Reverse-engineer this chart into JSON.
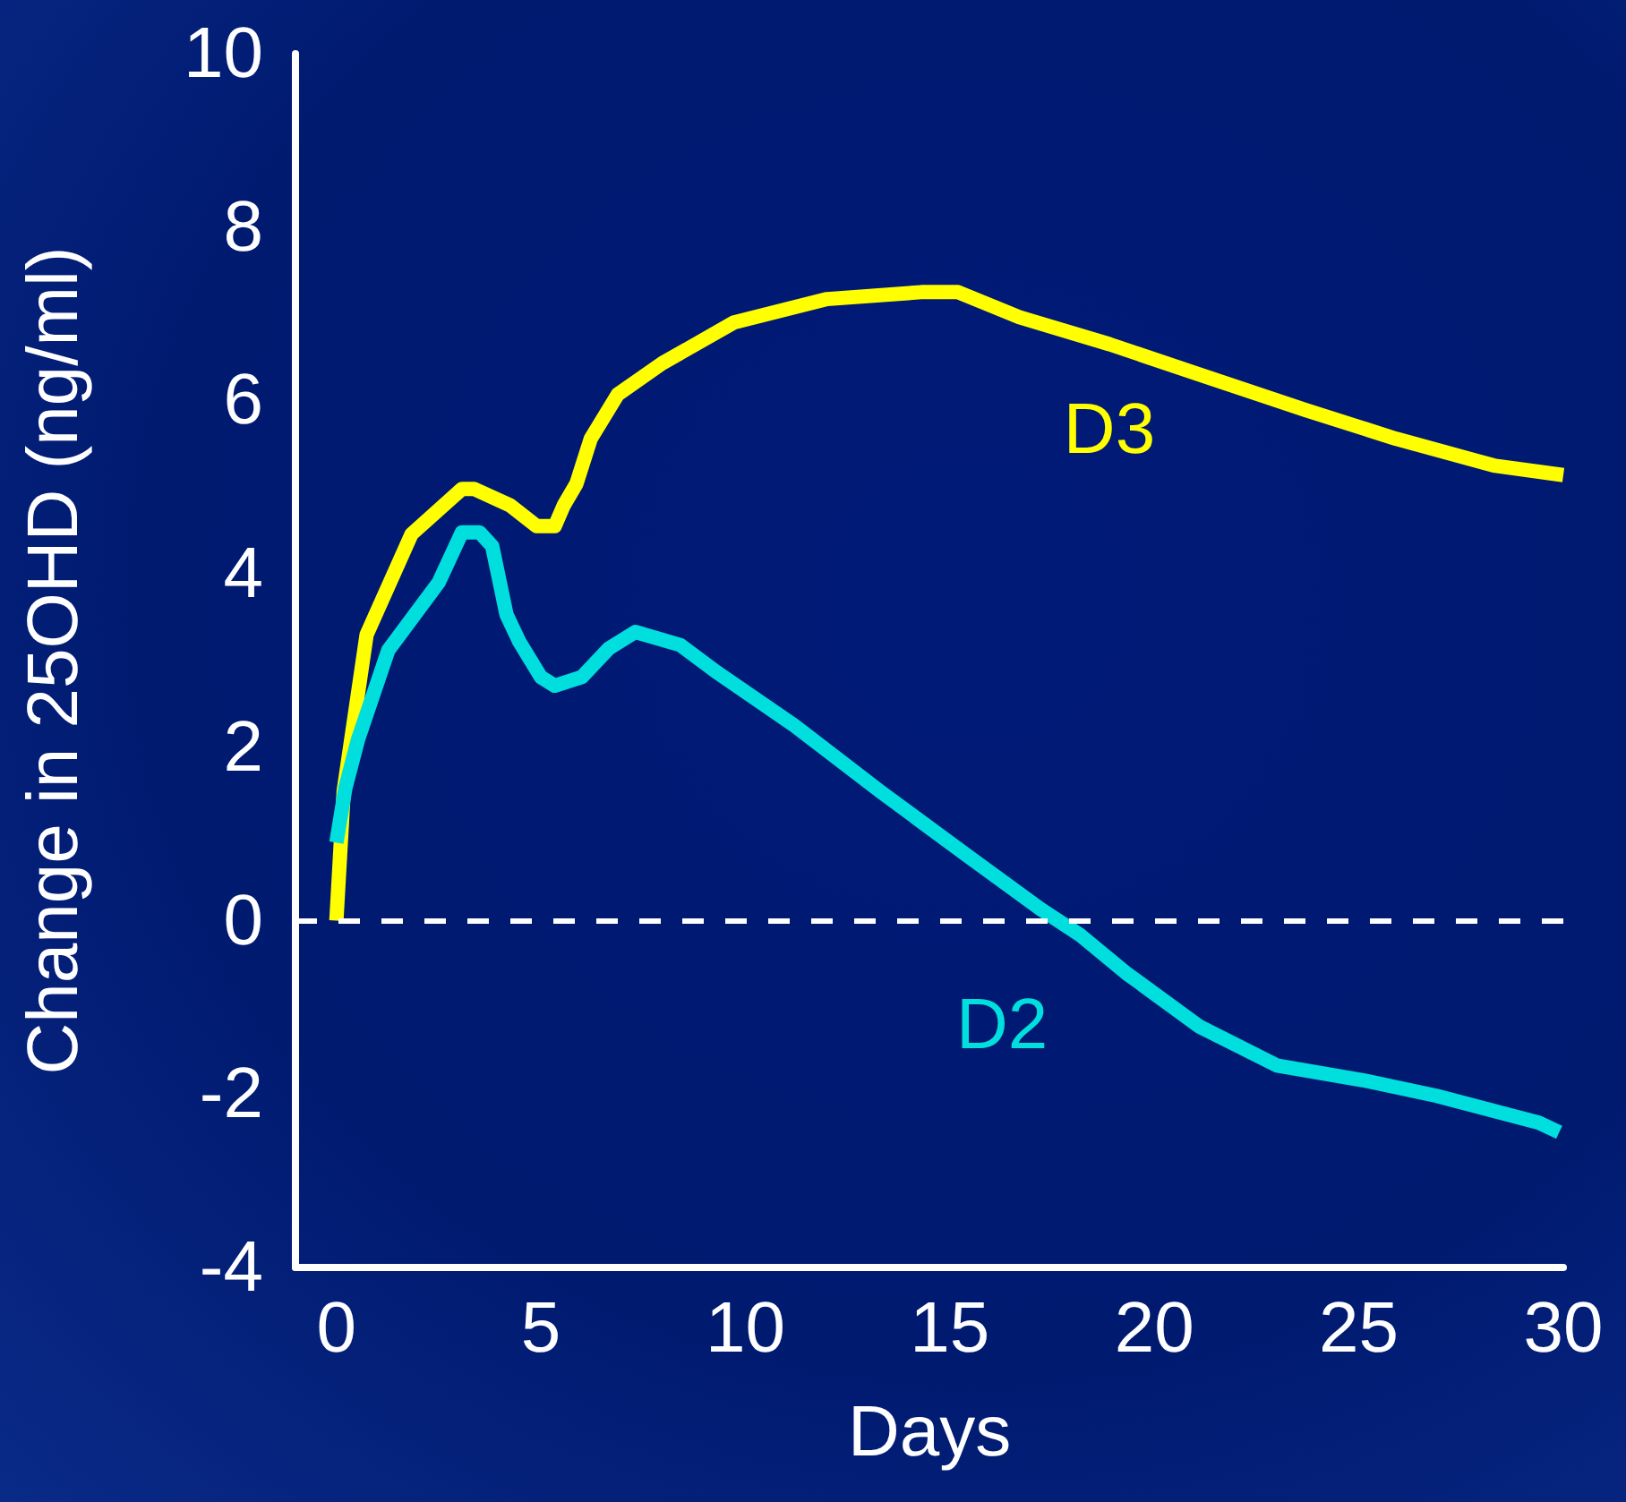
{
  "chart_data": {
    "type": "line",
    "xlabel": "Days",
    "ylabel": "Change in 25OHD (ng/ml)",
    "xlim": [
      -1,
      30
    ],
    "xticks": [
      0,
      5,
      10,
      15,
      20,
      25,
      30
    ],
    "ylim": [
      -4,
      10
    ],
    "yticks": [
      -4,
      -2,
      0,
      2,
      4,
      6,
      8,
      10
    ],
    "grid": false,
    "legend": false,
    "marker": "none",
    "line_style": "solid",
    "ref_lines": [
      {
        "axis": "y",
        "value": 0,
        "color": "#ffffff",
        "line_style": "dashed"
      }
    ],
    "series": [
      {
        "name": "D3",
        "color": "#ffff00",
        "x": [
          0,
          0.18,
          0.74,
          1.84,
          3.07,
          3.37,
          4.25,
          4.9,
          5.34,
          5.56,
          5.87,
          6.22,
          6.88,
          7.97,
          9.72,
          12.0,
          14.3,
          15.2,
          16.7,
          18.9,
          21.1,
          23.7,
          25.9,
          28.3,
          30
        ],
        "values": [
          0,
          1.5,
          3.3,
          4.46,
          4.98,
          4.98,
          4.79,
          4.55,
          4.55,
          4.79,
          5.04,
          5.56,
          6.07,
          6.43,
          6.9,
          7.17,
          7.25,
          7.25,
          6.96,
          6.65,
          6.3,
          5.89,
          5.56,
          5.25,
          5.14
        ]
      },
      {
        "name": "D2",
        "color": "#00dede",
        "x": [
          0,
          0.22,
          0.53,
          1.27,
          2.5,
          3.07,
          3.5,
          3.81,
          4.16,
          4.47,
          5.0,
          5.34,
          6.0,
          6.66,
          7.31,
          8.41,
          9.29,
          11.2,
          13.3,
          15.4,
          17.2,
          18.2,
          19.3,
          21.1,
          23.0,
          25.1,
          26.9,
          29.4,
          29.9
        ],
        "values": [
          0.9,
          1.53,
          2.09,
          3.12,
          3.9,
          4.48,
          4.48,
          4.32,
          3.53,
          3.22,
          2.81,
          2.71,
          2.81,
          3.14,
          3.33,
          3.18,
          2.87,
          2.25,
          1.49,
          0.76,
          0.14,
          -0.17,
          -0.6,
          -1.22,
          -1.67,
          -1.84,
          -2.02,
          -2.33,
          -2.44
        ]
      }
    ]
  }
}
